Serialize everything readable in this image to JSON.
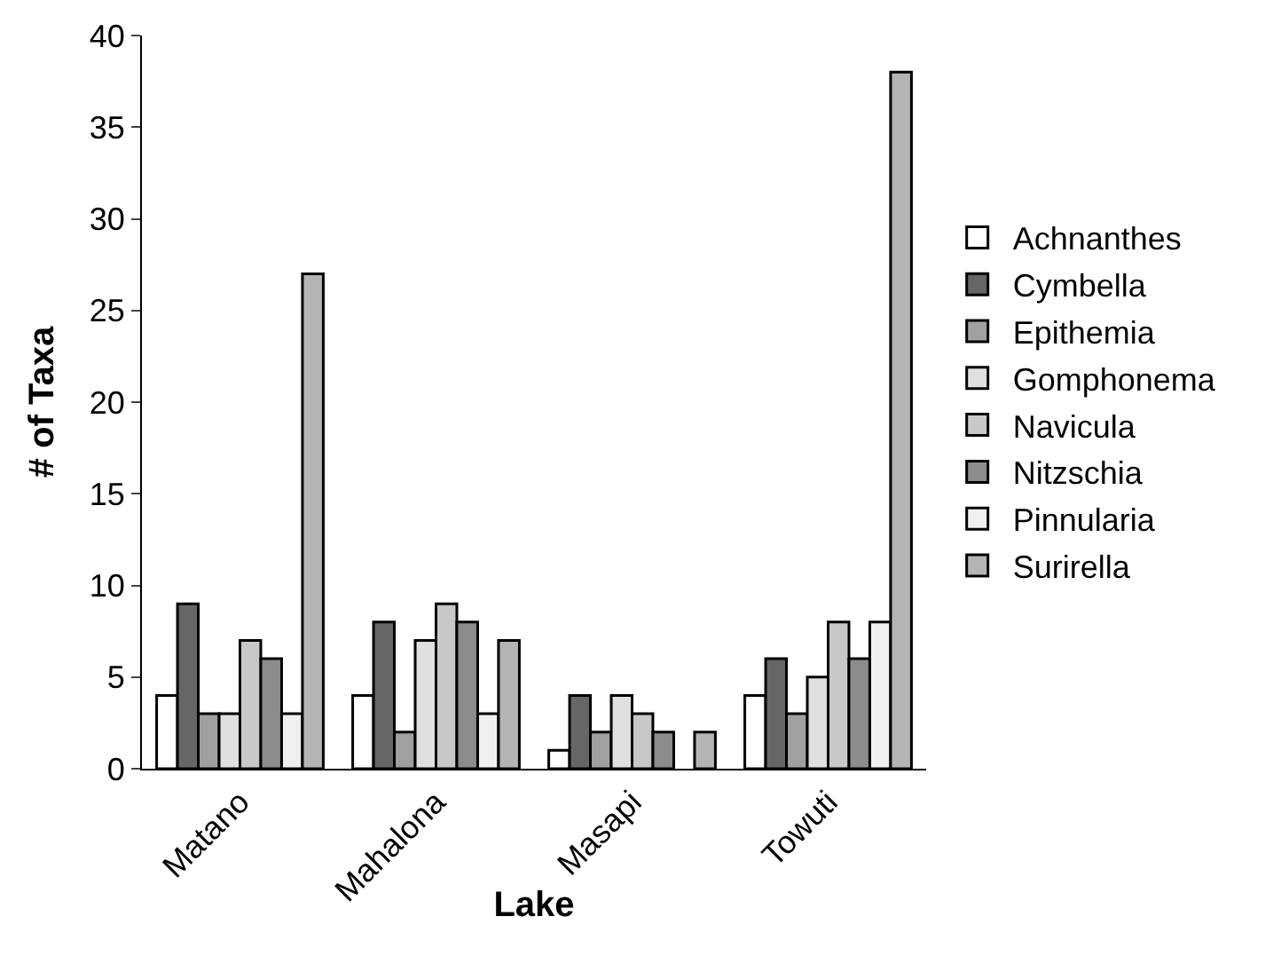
{
  "chart_data": {
    "type": "bar",
    "xlabel": "Lake",
    "ylabel": "# of Taxa",
    "categories": [
      "Matano",
      "Mahalona",
      "Masapi",
      "Towuti"
    ],
    "series": [
      {
        "name": "Achnanthes",
        "color": "#ffffff",
        "values": [
          4,
          4,
          1,
          4
        ]
      },
      {
        "name": "Cymbella",
        "color": "#666666",
        "values": [
          9,
          8,
          4,
          6
        ]
      },
      {
        "name": "Epithemia",
        "color": "#a0a0a0",
        "values": [
          3,
          2,
          2,
          3
        ]
      },
      {
        "name": "Gomphonema",
        "color": "#e0e0e0",
        "values": [
          3,
          7,
          4,
          5
        ]
      },
      {
        "name": "Navicula",
        "color": "#c8c8c8",
        "values": [
          7,
          9,
          3,
          8
        ]
      },
      {
        "name": "Nitzschia",
        "color": "#8c8c8c",
        "values": [
          6,
          8,
          2,
          6
        ]
      },
      {
        "name": "Pinnularia",
        "color": "#f0f0f0",
        "values": [
          3,
          3,
          0,
          8
        ]
      },
      {
        "name": "Surirella",
        "color": "#b4b4b4",
        "values": [
          27,
          7,
          2,
          38
        ]
      }
    ],
    "ylim": [
      0,
      40
    ],
    "yticks": [
      0,
      5,
      10,
      15,
      20,
      25,
      30,
      35,
      40
    ],
    "grid": false,
    "legend": "right"
  }
}
